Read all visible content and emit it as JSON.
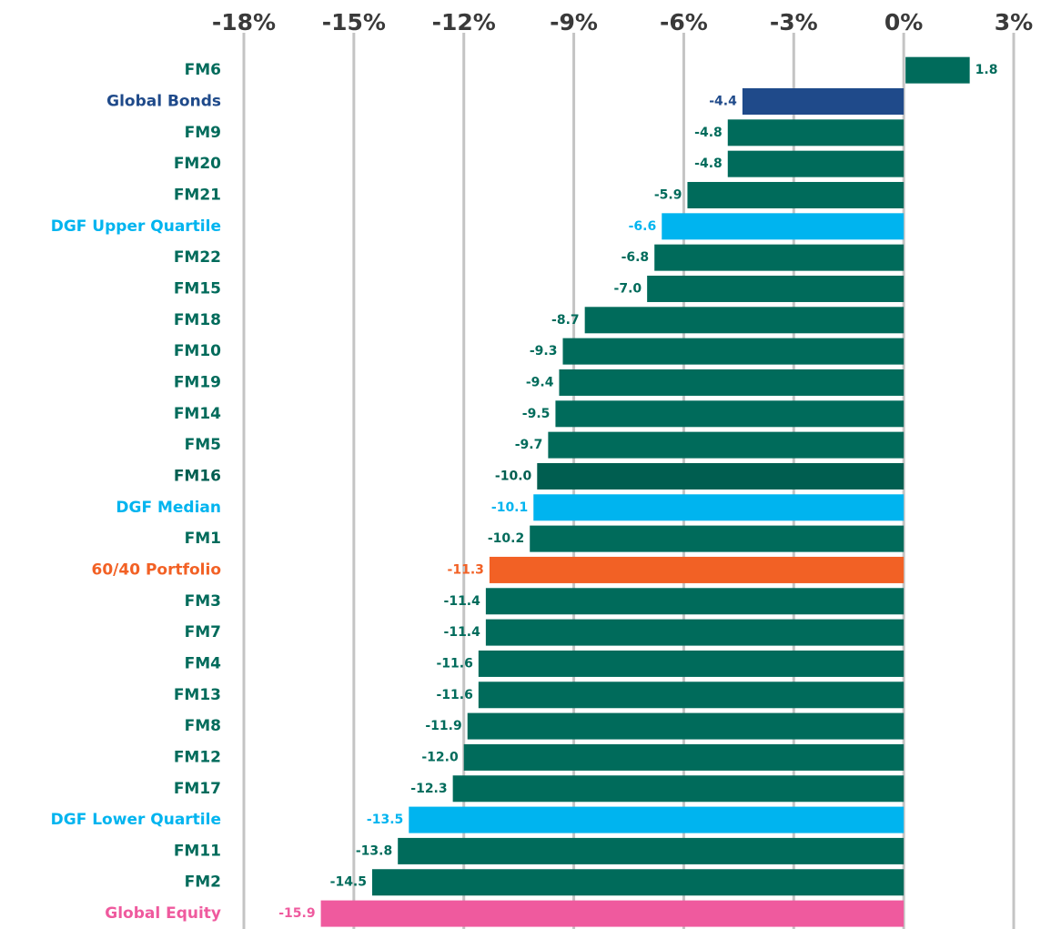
{
  "chart_data": {
    "type": "bar",
    "orientation": "horizontal",
    "categories": [
      "FM6",
      "Global Bonds",
      "FM9",
      "FM20",
      "FM21",
      "DGF Upper Quartile",
      "FM22",
      "FM15",
      "FM18",
      "FM10",
      "FM19",
      "FM14",
      "FM5",
      "FM16",
      "DGF Median",
      "FM1",
      "60/40 Portfolio",
      "FM3",
      "FM7",
      "FM4",
      "FM13",
      "FM8",
      "FM12",
      "FM17",
      "DGF Lower Quartile",
      "FM11",
      "FM2",
      "Global Equity"
    ],
    "values": [
      1.8,
      -4.4,
      -4.8,
      -4.8,
      -5.9,
      -6.6,
      -6.8,
      -7.0,
      -8.7,
      -9.3,
      -9.4,
      -9.5,
      -9.7,
      -10.0,
      -10.1,
      -10.2,
      -11.3,
      -11.4,
      -11.4,
      -11.6,
      -11.6,
      -11.9,
      -12.0,
      -12.3,
      -13.5,
      -13.8,
      -14.5,
      -15.9
    ],
    "value_labels": [
      "1.8",
      "-4.4",
      "-4.8",
      "-4.8",
      "-5.9",
      "-6.6",
      "-6.8",
      "-7.0",
      "-8.7",
      "-9.3",
      "-9.4",
      "-9.5",
      "-9.7",
      "-10.0",
      "-10.1",
      "-10.2",
      "-11.3",
      "-11.4",
      "-11.4",
      "-11.6",
      "-11.6",
      "-11.9",
      "-12.0",
      "-12.3",
      "-13.5",
      "-13.8",
      "-14.5",
      "-15.9"
    ],
    "colors": [
      "#006b5b",
      "#1f4a8a",
      "#006b5b",
      "#006b5b",
      "#006b5b",
      "#00b4ef",
      "#006b5b",
      "#006b5b",
      "#006b5b",
      "#006b5b",
      "#006b5b",
      "#006b5b",
      "#006b5b",
      "#005e50",
      "#00b4ef",
      "#006b5b",
      "#f26125",
      "#006b5b",
      "#006b5b",
      "#006b5b",
      "#006b5b",
      "#006b5b",
      "#006b5b",
      "#006b5b",
      "#00b4ef",
      "#006b5b",
      "#006b5b",
      "#ef5a9e"
    ],
    "xlim": [
      -18,
      3
    ],
    "xticks": [
      {
        "value": -18,
        "label": "-18%"
      },
      {
        "value": -15,
        "label": "-15%"
      },
      {
        "value": -12,
        "label": "-12%"
      },
      {
        "value": -9,
        "label": "-9%"
      },
      {
        "value": -6,
        "label": "-6%"
      },
      {
        "value": -3,
        "label": "-3%"
      },
      {
        "value": 0,
        "label": "0%"
      },
      {
        "value": 3,
        "label": "3%"
      }
    ],
    "grid": true
  }
}
